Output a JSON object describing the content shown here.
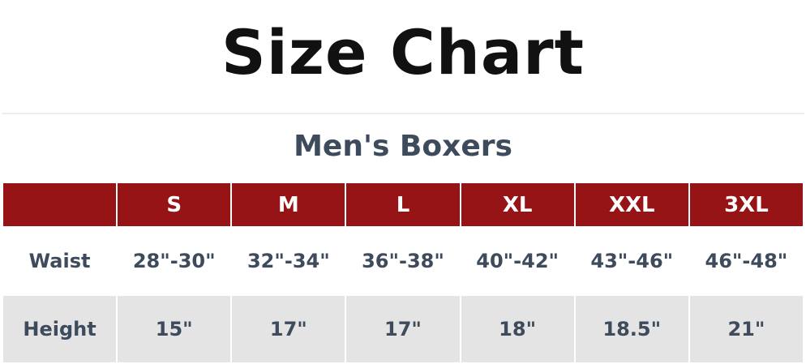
{
  "title": "Size Chart",
  "subtitle": "Men's Boxers",
  "table": {
    "headers": [
      "",
      "S",
      "M",
      "L",
      "XL",
      "XXL",
      "3XL"
    ],
    "rows": [
      {
        "label": "Waist",
        "values": [
          "28\"-30\"",
          "32\"-34\"",
          "36\"-38\"",
          "40\"-42\"",
          "43\"-46\"",
          "46\"-48\""
        ]
      },
      {
        "label": "Height",
        "values": [
          "15\"",
          "17\"",
          "17\"",
          "18\"",
          "18.5\"",
          "21\""
        ]
      }
    ]
  },
  "colors": {
    "header_bg": "#961316",
    "text": "#3e4b5c",
    "alt_row": "#e4e4e4"
  }
}
